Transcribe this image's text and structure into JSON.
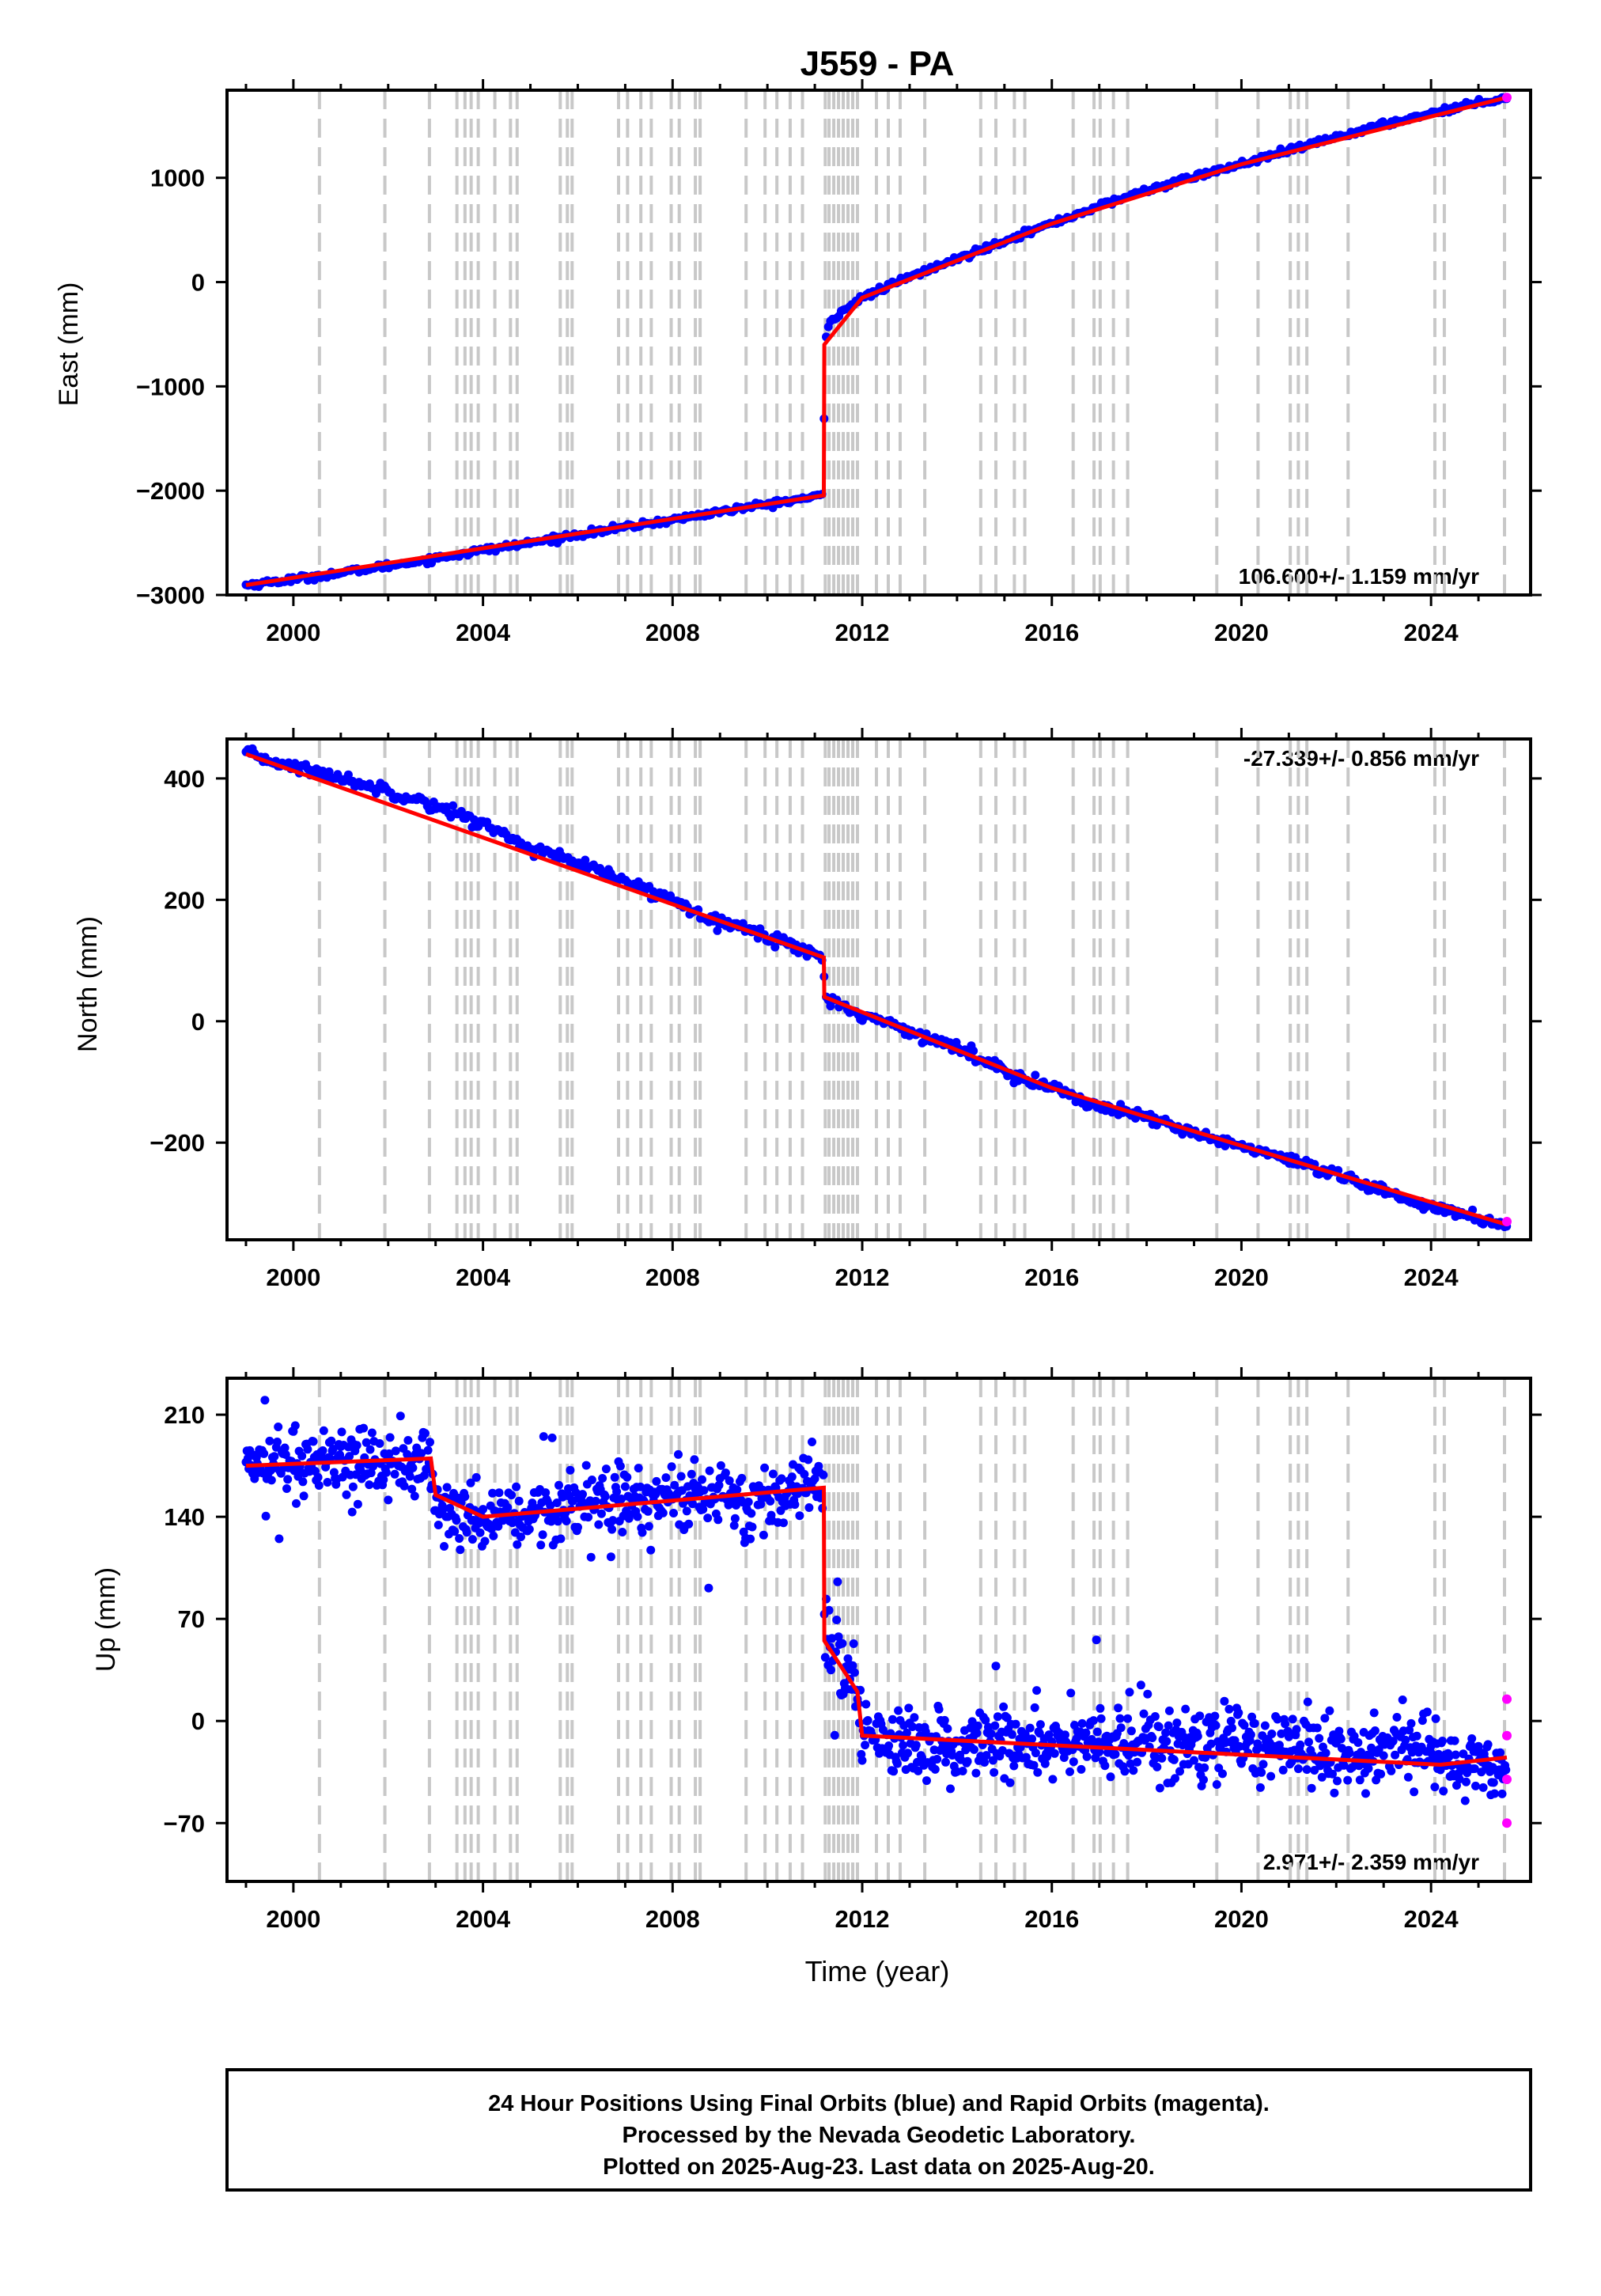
{
  "chart_data": [
    {
      "type": "scatter",
      "title": "J559 - PA",
      "ylabel": "East (mm)",
      "xlabel": "",
      "xlim": [
        1998.6,
        2026.1
      ],
      "ylim": [
        -3000,
        1840
      ],
      "xticks": [
        2000,
        2004,
        2008,
        2012,
        2016,
        2020,
        2024
      ],
      "yticks": [
        -3000,
        -2000,
        -1000,
        0,
        1000
      ],
      "rate_label": "106.600+/- 1.159 mm/yr",
      "grid": "vertical dashed lines at equipment/event epochs",
      "series": [
        {
          "color": "#0000ff",
          "points": [
            [
              1999.0,
              -2905
            ],
            [
              2000.0,
              -2850
            ],
            [
              2001.0,
              -2790
            ],
            [
              2002.0,
              -2720
            ],
            [
              2003.0,
              -2650
            ],
            [
              2004.0,
              -2570
            ],
            [
              2005.0,
              -2500
            ],
            [
              2006.0,
              -2420
            ],
            [
              2007.0,
              -2350
            ],
            [
              2008.0,
              -2280
            ],
            [
              2009.0,
              -2200
            ],
            [
              2010.0,
              -2130
            ],
            [
              2011.19,
              -2045
            ],
            [
              2011.2,
              -600
            ],
            [
              2011.3,
              -400
            ],
            [
              2011.5,
              -300
            ],
            [
              2012.0,
              -150
            ],
            [
              2013.0,
              50
            ],
            [
              2014.0,
              220
            ],
            [
              2015.0,
              400
            ],
            [
              2016.0,
              560
            ],
            [
              2017.0,
              730
            ],
            [
              2018.0,
              880
            ],
            [
              2019.0,
              1010
            ],
            [
              2020.0,
              1130
            ],
            [
              2021.0,
              1260
            ],
            [
              2022.0,
              1390
            ],
            [
              2023.0,
              1510
            ],
            [
              2024.0,
              1620
            ],
            [
              2025.0,
              1720
            ],
            [
              2025.6,
              1770
            ]
          ]
        },
        {
          "color": "#ff0000",
          "points": [
            [
              1999.0,
              -2905
            ],
            [
              2011.19,
              -2045
            ],
            [
              2011.2,
              -600
            ],
            [
              2012.0,
              -150
            ],
            [
              2016.0,
              560
            ],
            [
              2020.0,
              1130
            ],
            [
              2025.6,
              1770
            ]
          ]
        },
        {
          "color": "#ff00ff",
          "points": [
            [
              2025.6,
              1770
            ]
          ]
        }
      ]
    },
    {
      "type": "scatter",
      "title": "",
      "ylabel": "North (mm)",
      "xlabel": "",
      "xlim": [
        1998.6,
        2026.1
      ],
      "ylim": [
        -360,
        465
      ],
      "xticks": [
        2000,
        2004,
        2008,
        2012,
        2016,
        2020,
        2024
      ],
      "yticks": [
        -200,
        0,
        200,
        400
      ],
      "rate_label": "-27.339+/- 0.856 mm/yr",
      "series": [
        {
          "color": "#0000ff",
          "points": [
            [
              1999.0,
              440
            ],
            [
              2000.0,
              420
            ],
            [
              2001.0,
              400
            ],
            [
              2002.0,
              380
            ],
            [
              2003.0,
              355
            ],
            [
              2004.0,
              325
            ],
            [
              2005.0,
              285
            ],
            [
              2006.0,
              260
            ],
            [
              2007.0,
              230
            ],
            [
              2008.0,
              200
            ],
            [
              2009.0,
              165
            ],
            [
              2010.0,
              140
            ],
            [
              2011.19,
              105
            ],
            [
              2011.2,
              40
            ],
            [
              2012.0,
              10
            ],
            [
              2013.0,
              -15
            ],
            [
              2014.0,
              -45
            ],
            [
              2015.0,
              -80
            ],
            [
              2016.0,
              -110
            ],
            [
              2017.0,
              -140
            ],
            [
              2018.0,
              -160
            ],
            [
              2019.0,
              -185
            ],
            [
              2020.0,
              -205
            ],
            [
              2021.0,
              -230
            ],
            [
              2022.0,
              -255
            ],
            [
              2023.0,
              -280
            ],
            [
              2024.0,
              -305
            ],
            [
              2025.0,
              -325
            ],
            [
              2025.6,
              -335
            ]
          ]
        },
        {
          "color": "#ff0000",
          "points": [
            [
              1999.0,
              440
            ],
            [
              2011.19,
              105
            ],
            [
              2011.2,
              40
            ],
            [
              2016.0,
              -110
            ],
            [
              2020.0,
              -205
            ],
            [
              2025.6,
              -335
            ]
          ]
        },
        {
          "color": "#ff00ff",
          "points": [
            [
              2025.6,
              -330
            ]
          ]
        }
      ]
    },
    {
      "type": "scatter",
      "title": "",
      "ylabel": "Up (mm)",
      "xlabel": "Time (year)",
      "xlim": [
        1998.6,
        2026.1
      ],
      "ylim": [
        -110,
        235
      ],
      "xticks": [
        2000,
        2004,
        2008,
        2012,
        2016,
        2020,
        2024
      ],
      "yticks": [
        -70,
        0,
        70,
        140,
        210
      ],
      "rate_label": "2.971+/- 2.359 mm/yr",
      "series": [
        {
          "color": "#0000ff",
          "points": [
            [
              1999.0,
              175
            ],
            [
              2000.0,
              178
            ],
            [
              2001.0,
              180
            ],
            [
              2002.0,
              175
            ],
            [
              2002.9,
              180
            ],
            [
              2003.0,
              155
            ],
            [
              2003.5,
              140
            ],
            [
              2004.0,
              135
            ],
            [
              2005.0,
              145
            ],
            [
              2006.0,
              150
            ],
            [
              2007.0,
              153
            ],
            [
              2008.0,
              155
            ],
            [
              2009.0,
              155
            ],
            [
              2010.0,
              150
            ],
            [
              2010.8,
              165
            ],
            [
              2011.19,
              160
            ],
            [
              2011.2,
              60
            ],
            [
              2011.5,
              40
            ],
            [
              2011.9,
              20
            ],
            [
              2012.0,
              -10
            ],
            [
              2013.0,
              -15
            ],
            [
              2014.0,
              -20
            ],
            [
              2015.0,
              -15
            ],
            [
              2016.0,
              -15
            ],
            [
              2017.0,
              -18
            ],
            [
              2018.0,
              -18
            ],
            [
              2019.0,
              -15
            ],
            [
              2020.0,
              -15
            ],
            [
              2021.0,
              -15
            ],
            [
              2022.0,
              -22
            ],
            [
              2023.0,
              -22
            ],
            [
              2024.0,
              -18
            ],
            [
              2024.2,
              -30
            ],
            [
              2025.0,
              -30
            ],
            [
              2025.6,
              -35
            ]
          ]
        },
        {
          "color": "#ff0000",
          "points": [
            [
              1999.0,
              175
            ],
            [
              2002.9,
              180
            ],
            [
              2003.0,
              155
            ],
            [
              2004.0,
              140
            ],
            [
              2011.19,
              160
            ],
            [
              2011.2,
              55
            ],
            [
              2011.9,
              20
            ],
            [
              2012.0,
              -10
            ],
            [
              2024.2,
              -30
            ],
            [
              2025.6,
              -25
            ]
          ]
        },
        {
          "color": "#ff00ff",
          "points": [
            [
              2025.6,
              15
            ],
            [
              2025.6,
              -10
            ],
            [
              2025.6,
              -40
            ],
            [
              2025.6,
              -70
            ]
          ]
        }
      ]
    }
  ],
  "footer": {
    "line1": "24 Hour Positions Using Final Orbits (blue) and Rapid Orbits (magenta).",
    "line2": "Processed by the Nevada Geodetic Laboratory.",
    "line3": "Plotted on 2025-Aug-23. Last data on 2025-Aug-20."
  }
}
